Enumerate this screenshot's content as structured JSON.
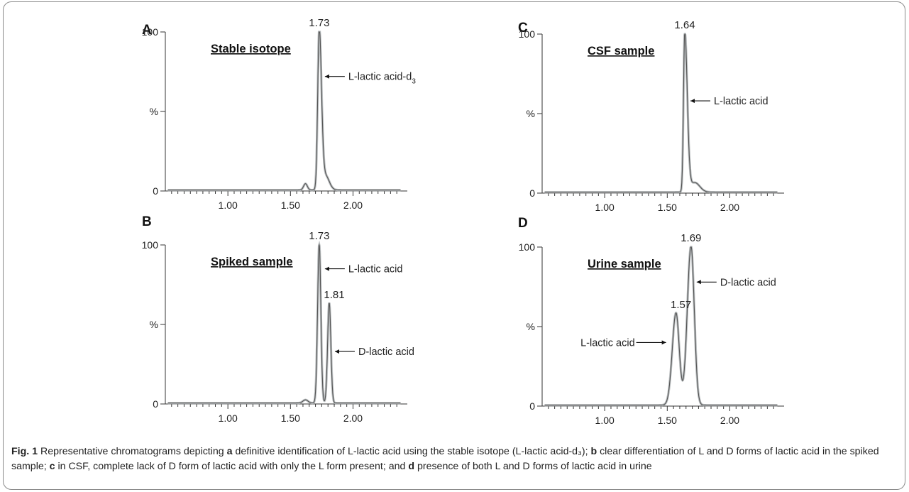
{
  "panels": [
    {
      "letter": "A",
      "title": "Stable isotope",
      "y_ticks": [
        "100",
        "%",
        "0"
      ],
      "x_ticks": [
        "1.00",
        "1.50",
        "2.00"
      ],
      "chart_data": {
        "type": "line",
        "xlim": [
          0.5,
          2.4
        ],
        "ylim": [
          0,
          100
        ],
        "peaks": [
          {
            "rt": 1.73,
            "height": 100,
            "label": "1.73"
          }
        ],
        "annotations": [
          {
            "text": "L-lactic acid-d",
            "sub": "3",
            "x": 1.73,
            "y": 72
          }
        ]
      }
    },
    {
      "letter": "B",
      "title": "Spiked sample",
      "y_ticks": [
        "100",
        "%",
        "0"
      ],
      "x_ticks": [
        "1.00",
        "1.50",
        "2.00"
      ],
      "chart_data": {
        "type": "line",
        "xlim": [
          0.5,
          2.4
        ],
        "ylim": [
          0,
          100
        ],
        "peaks": [
          {
            "rt": 1.73,
            "height": 100,
            "label": "1.73"
          },
          {
            "rt": 1.81,
            "height": 63,
            "label": "1.81"
          }
        ],
        "annotations": [
          {
            "text": "L-lactic acid",
            "sub": "",
            "x": 1.73,
            "y": 85
          },
          {
            "text": "D-lactic acid",
            "sub": "",
            "x": 1.81,
            "y": 33
          }
        ]
      }
    },
    {
      "letter": "C",
      "title": "CSF sample",
      "y_ticks": [
        "100",
        "%",
        "0"
      ],
      "x_ticks": [
        "1.00",
        "1.50",
        "2.00"
      ],
      "chart_data": {
        "type": "line",
        "xlim": [
          0.5,
          2.4
        ],
        "ylim": [
          0,
          100
        ],
        "peaks": [
          {
            "rt": 1.64,
            "height": 100,
            "label": "1.64"
          }
        ],
        "annotations": [
          {
            "text": "L-lactic acid",
            "sub": "",
            "x": 1.64,
            "y": 58
          }
        ]
      }
    },
    {
      "letter": "D",
      "title": "Urine sample",
      "y_ticks": [
        "100",
        "%",
        "0"
      ],
      "x_ticks": [
        "1.00",
        "1.50",
        "2.00"
      ],
      "chart_data": {
        "type": "line",
        "xlim": [
          0.5,
          2.4
        ],
        "ylim": [
          0,
          100
        ],
        "peaks": [
          {
            "rt": 1.57,
            "height": 58,
            "label": "1.57"
          },
          {
            "rt": 1.69,
            "height": 100,
            "label": "1.69"
          }
        ],
        "annotations": [
          {
            "text": "D-lactic acid",
            "sub": "",
            "x": 1.69,
            "y": 78
          },
          {
            "text": "L-lactic acid",
            "sub": "",
            "x": 1.57,
            "y": 40
          }
        ]
      }
    }
  ],
  "caption": {
    "fig_label": "Fig. 1",
    "segments": [
      {
        "text": " Representative chromatograms depicting ",
        "bold": false
      },
      {
        "text": "a",
        "bold": true
      },
      {
        "text": " definitive identification of L-lactic acid using the stable isotope (L-lactic acid-d₃); ",
        "bold": false
      },
      {
        "text": "b",
        "bold": true
      },
      {
        "text": " clear differentiation of L and D forms of lactic acid in the spiked sample; ",
        "bold": false
      },
      {
        "text": "c",
        "bold": true
      },
      {
        "text": " in CSF, complete lack of D form of lactic acid with only the L form present; and ",
        "bold": false
      },
      {
        "text": "d",
        "bold": true
      },
      {
        "text": " presence of both L and D forms of lactic acid in urine",
        "bold": false
      }
    ]
  }
}
